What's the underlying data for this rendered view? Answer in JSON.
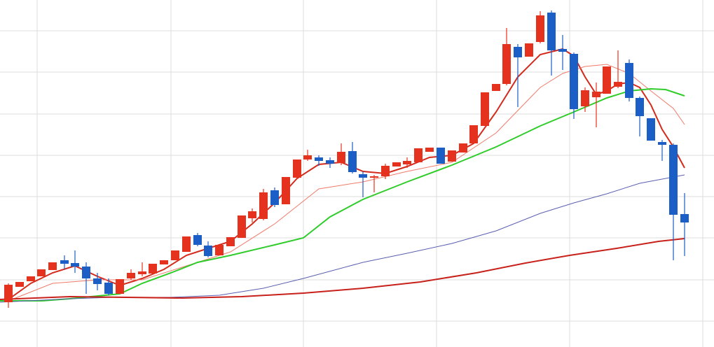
{
  "chart_data": {
    "type": "candlestick",
    "x": [
      12,
      28,
      44,
      59,
      75,
      92,
      107,
      123,
      139,
      155,
      171,
      187,
      203,
      218,
      234,
      250,
      266,
      282,
      297,
      313,
      329,
      345,
      360,
      376,
      392,
      408,
      424,
      439,
      455,
      471,
      487,
      503,
      518,
      534,
      550,
      566,
      581,
      597,
      613,
      629,
      645,
      661,
      676,
      692,
      708,
      723,
      739,
      755,
      771,
      787,
      803,
      819,
      835,
      851,
      866,
      882,
      898,
      913,
      929,
      945,
      961,
      977
    ],
    "open": [
      64,
      86,
      94,
      101,
      110,
      124,
      120,
      115,
      98,
      92,
      76,
      98,
      104,
      105,
      118,
      124,
      136,
      160,
      145,
      131,
      144,
      156,
      184,
      183,
      224,
      204,
      242,
      268,
      271,
      267,
      263,
      280,
      247,
      242,
      244,
      258,
      261,
      264,
      279,
      285,
      265,
      278,
      291,
      316,
      366,
      376,
      429,
      415,
      436,
      478,
      426,
      419,
      344,
      357,
      362,
      372,
      406,
      356,
      327,
      293,
      289,
      190
    ],
    "high": [
      91,
      93,
      101,
      111,
      121,
      131,
      138,
      121,
      106,
      98,
      97,
      111,
      121,
      119,
      124,
      138,
      158,
      163,
      151,
      146,
      157,
      188,
      198,
      226,
      228,
      243,
      268,
      282,
      274,
      271,
      291,
      293,
      251,
      246,
      262,
      264,
      271,
      284,
      285,
      285,
      281,
      291,
      317,
      364,
      376,
      456,
      433,
      434,
      480,
      481,
      446,
      421,
      371,
      378,
      401,
      424,
      411,
      358,
      327,
      296,
      291,
      220
    ],
    "low": [
      56,
      86,
      94,
      101,
      110,
      111,
      106,
      76,
      81,
      74,
      76,
      96,
      101,
      105,
      118,
      124,
      136,
      144,
      128,
      131,
      144,
      156,
      178,
      181,
      200,
      204,
      242,
      266,
      259,
      256,
      260,
      248,
      214,
      221,
      240,
      258,
      256,
      264,
      279,
      262,
      265,
      278,
      291,
      316,
      366,
      374,
      343,
      415,
      434,
      388,
      396,
      326,
      336,
      314,
      362,
      370,
      351,
      301,
      295,
      266,
      124,
      130
    ],
    "close": [
      89,
      93,
      101,
      111,
      121,
      119,
      115,
      98,
      90,
      76,
      97,
      106,
      108,
      119,
      124,
      138,
      158,
      146,
      130,
      146,
      157,
      188,
      194,
      221,
      203,
      243,
      268,
      274,
      266,
      262,
      279,
      250,
      242,
      244,
      259,
      264,
      266,
      284,
      285,
      262,
      281,
      291,
      317,
      364,
      376,
      433,
      414,
      434,
      474,
      424,
      422,
      340,
      367,
      365,
      401,
      379,
      356,
      330,
      295,
      289,
      189,
      178
    ],
    "up_color": "#e5321e",
    "down_color": "#1b5ec6",
    "lines": [
      {
        "color": "#d42a1c",
        "width": 2,
        "x": [
          12,
          44,
          75,
          107,
          139,
          171,
          203,
          234,
          266,
          297,
          329,
          360,
          392,
          424,
          455,
          487,
          518,
          550,
          581,
          613,
          645,
          676,
          708,
          739,
          771,
          803,
          819,
          835,
          851,
          866,
          882,
          898,
          913,
          929,
          945,
          961,
          977
        ],
        "values": [
          68,
          91,
          106,
          116,
          101,
          88,
          98,
          111,
          131,
          141,
          151,
          176,
          206,
          241,
          261,
          264,
          251,
          248,
          258,
          271,
          274,
          291,
          336,
          386,
          418,
          426,
          416,
          386,
          361,
          366,
          376,
          378,
          371,
          346,
          311,
          286,
          256
        ]
      },
      {
        "color": "#f07a6a",
        "width": 1,
        "x": [
          12,
          75,
          139,
          203,
          266,
          329,
          392,
          455,
          518,
          581,
          645,
          708,
          771,
          803,
          835,
          866,
          898,
          929,
          961,
          977
        ],
        "values": [
          66,
          91,
          96,
          96,
          116,
          136,
          176,
          226,
          236,
          251,
          264,
          306,
          371,
          391,
          401,
          404,
          391,
          366,
          341,
          318
        ]
      },
      {
        "color": "#2fcc2a",
        "width": 2,
        "x": [
          0,
          60,
          100,
          140,
          171,
          203,
          244,
          282,
          329,
          392,
          433,
          471,
          518,
          581,
          645,
          708,
          771,
          819,
          866,
          898,
          929,
          950,
          977
        ],
        "values": [
          66,
          66,
          69,
          73,
          76,
          91,
          106,
          121,
          131,
          146,
          156,
          186,
          211,
          236,
          260,
          286,
          316,
          336,
          356,
          366,
          369,
          368,
          359
        ]
      },
      {
        "color": "#5a5fb0",
        "width": 1,
        "x": [
          0,
          100,
          160,
          244,
          313,
          376,
          433,
          518,
          581,
          645,
          708,
          771,
          819,
          866,
          913,
          961,
          977
        ],
        "values": [
          64,
          69,
          71,
          71,
          74,
          84,
          98,
          121,
          134,
          148,
          166,
          191,
          206,
          219,
          234,
          243,
          246
        ]
      },
      {
        "color": "#c8201a",
        "width": 2,
        "x": [
          0,
          100,
          180,
          260,
          345,
          433,
          518,
          600,
          680,
          750,
          813,
          880,
          940,
          977
        ],
        "values": [
          68,
          72,
          71,
          70,
          72,
          77,
          84,
          93,
          106,
          120,
          131,
          141,
          151,
          155
        ]
      }
    ],
    "xlim": [
      0,
      1019
    ],
    "ylim": [
      0,
      496
    ],
    "xticks": [
      53,
      244,
      433,
      623,
      813,
      1003
    ],
    "yticks": [
      37,
      96,
      156,
      215,
      274,
      333,
      393,
      452
    ],
    "grid": true
  }
}
